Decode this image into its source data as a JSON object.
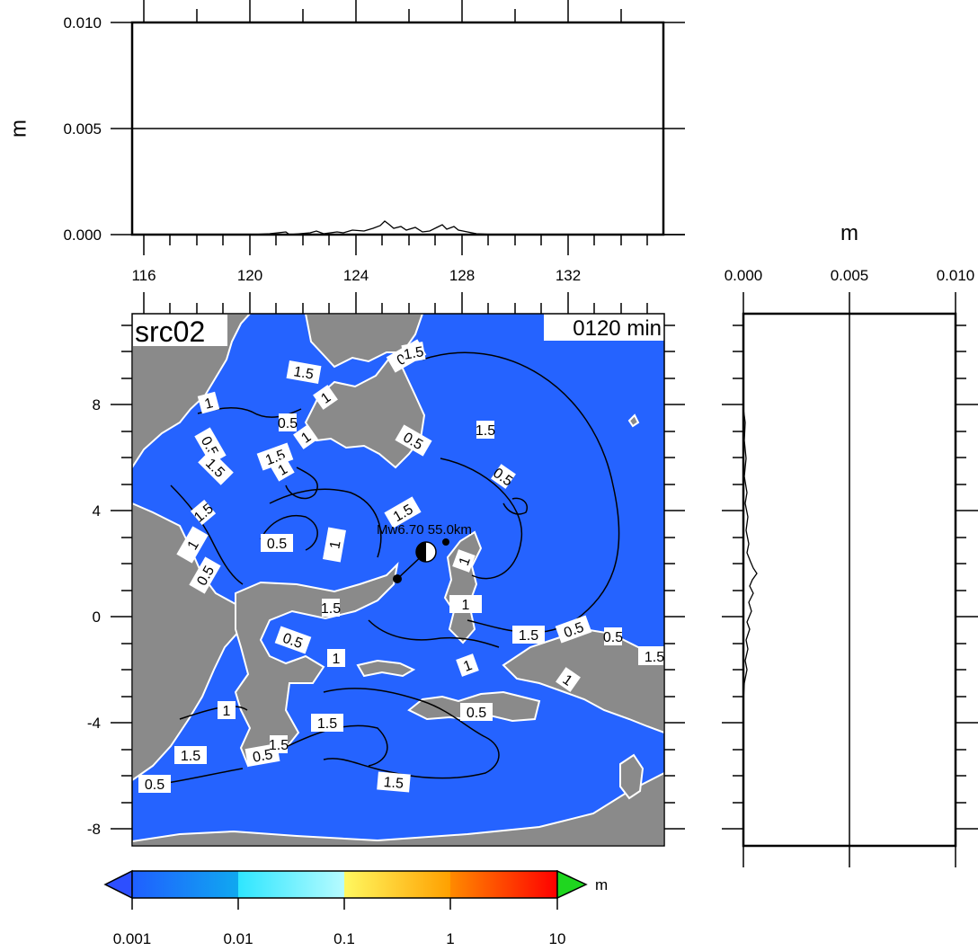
{
  "source_label": "src02",
  "time_label": "0120 min",
  "event_label": "Mw6.70 55.0km",
  "colors": {
    "ocean": "#2563ff",
    "land": "#8a8a8a",
    "coast": "#ffffff",
    "contour": "#000000"
  },
  "top_panel": {
    "ylabel": "m",
    "yticks": [
      "0.000",
      "0.005",
      "0.010"
    ],
    "xticks": [
      "116",
      "120",
      "124",
      "128",
      "132"
    ]
  },
  "right_panel": {
    "xlabel": "m",
    "xticks": [
      "0.000",
      "0.005",
      "0.010"
    ]
  },
  "map": {
    "yticks": [
      "8",
      "4",
      "0",
      "-4",
      "-8"
    ],
    "contour_labels": [
      "1.5",
      "1",
      "0.5",
      "1.5",
      "1",
      "1",
      "0.5",
      "1.5",
      "1",
      "0.5",
      "1.5",
      "0.5",
      "1.5",
      "0.5",
      "1",
      "1",
      "0.5",
      "1",
      "1",
      "1.5",
      "0.5",
      "1",
      "1.5",
      "1",
      "0.5",
      "1.5",
      "0.5",
      "1",
      "1.5",
      "1.5",
      "0.5",
      "1",
      "1.5",
      "1.5",
      "0.5",
      "1.5",
      "0.5",
      "1.5",
      "0.5"
    ]
  },
  "colorbar": {
    "unit": "m",
    "ticks": [
      "0.001",
      "0.01",
      "0.1",
      "1",
      "10"
    ]
  }
}
